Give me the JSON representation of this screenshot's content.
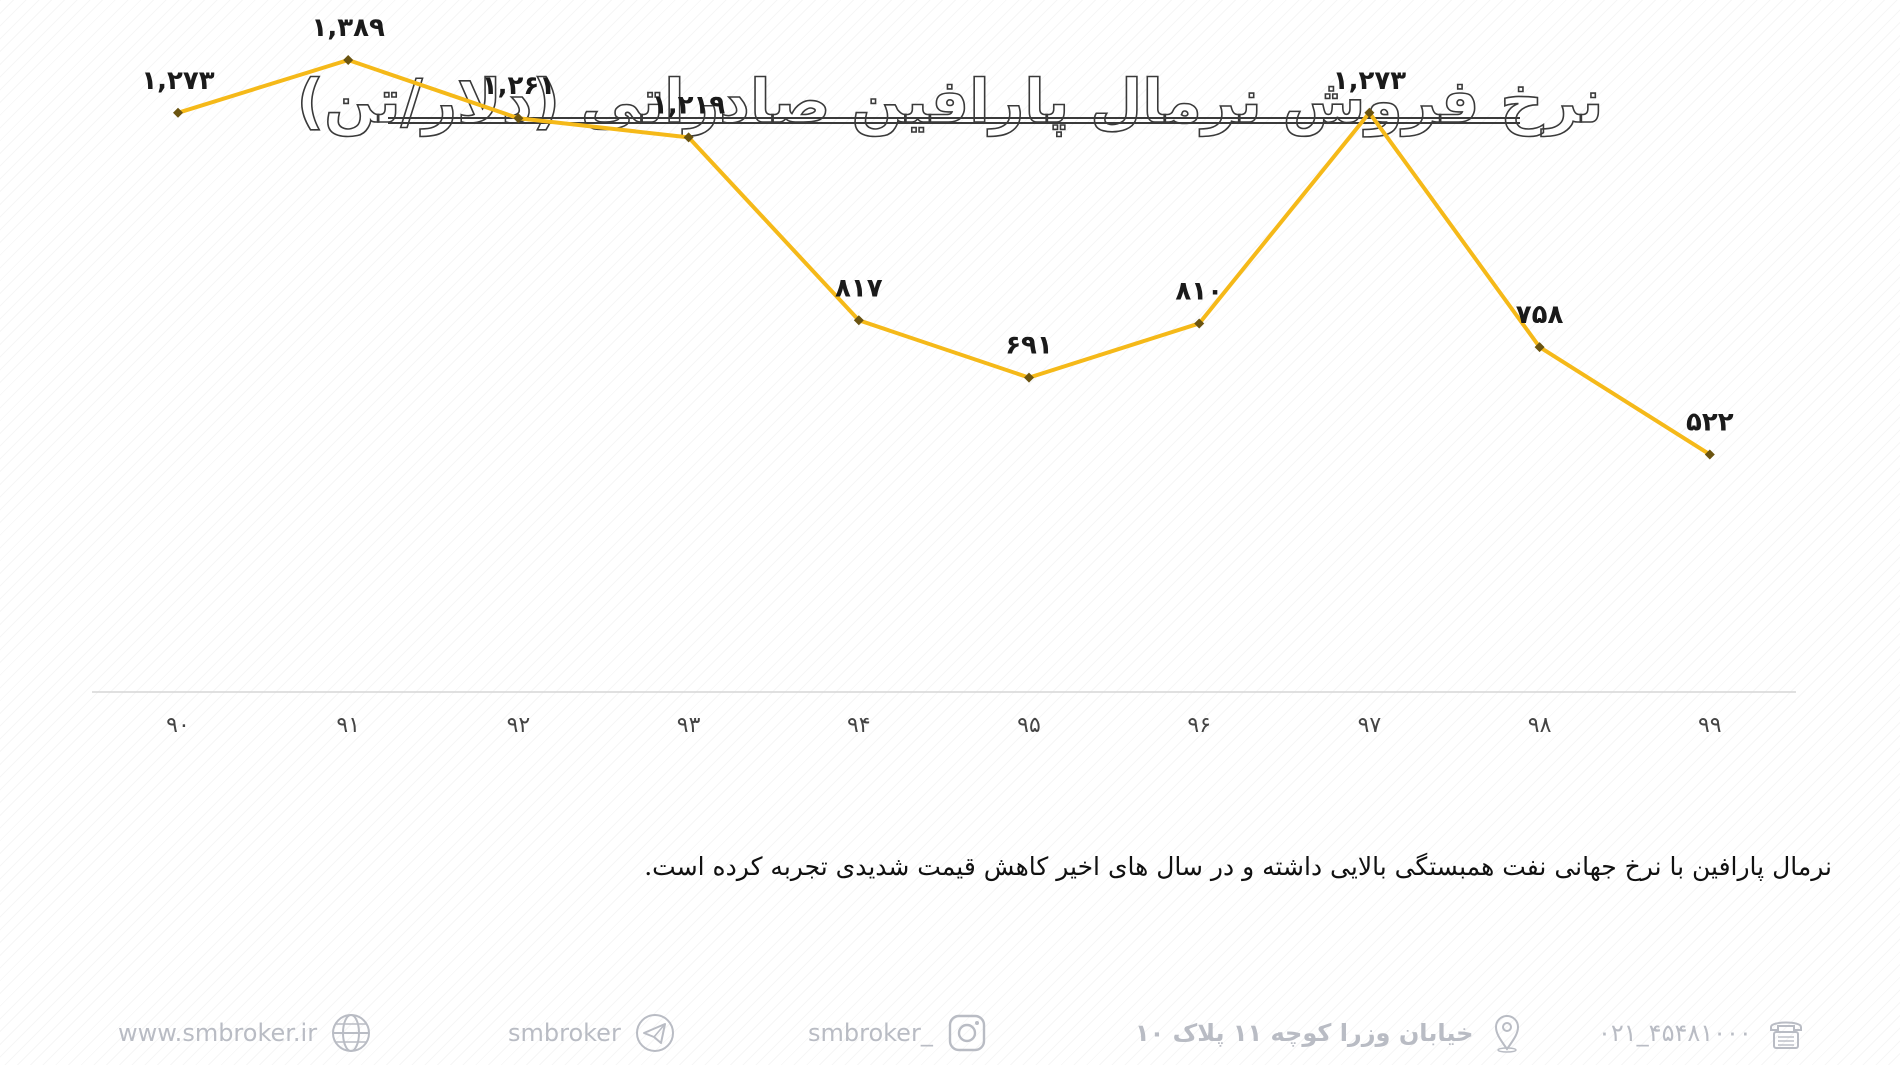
{
  "title": "نرخ فروش نرمال پارافین صادراتی (دلار/تن)",
  "note": "نرمال پارافین با نرخ جهانی نفت همبستگی بالایی داشته و در سال های اخیر کاهش قیمت شدیدی تجربه کرده است.",
  "footer": {
    "website": "www.smbroker.ir",
    "telegram": "smbroker",
    "instagram": "smbroker_",
    "address": "خیابان وزرا کوچه ۱۱ پلاک ۱۰",
    "phone": "۰۲۱_۴۵۴۸۱۰۰۰",
    "icons": [
      "globe-icon",
      "telegram-icon",
      "instagram-icon",
      "location-pin-icon",
      "telephone-icon"
    ]
  },
  "chart_data": {
    "type": "line",
    "title": "نرخ فروش نرمال پارافین صادراتی (دلار/تن)",
    "xlabel": "",
    "ylabel": "",
    "categories": [
      "۹۰",
      "۹۱",
      "۹۲",
      "۹۳",
      "۹۴",
      "۹۵",
      "۹۶",
      "۹۷",
      "۹۸",
      "۹۹"
    ],
    "series": [
      {
        "values": [
          1273,
          1389,
          1261,
          1219,
          817,
          691,
          810,
          1273,
          758,
          522
        ],
        "labels": [
          "۱,۲۷۳",
          "۱,۳۸۹",
          "۱,۲۶۱",
          "۱,۲۱۹",
          "۸۱۷",
          "۶۹۱",
          "۸۱۰",
          "۱,۲۷۳",
          "۷۵۸",
          "۵۲۲"
        ],
        "color": "#f5b919",
        "marker_color": "#6b5410"
      }
    ],
    "ylim": [
      0,
      1600
    ],
    "grid": false,
    "legend": "none",
    "axis_color": "#d6d6d6"
  }
}
